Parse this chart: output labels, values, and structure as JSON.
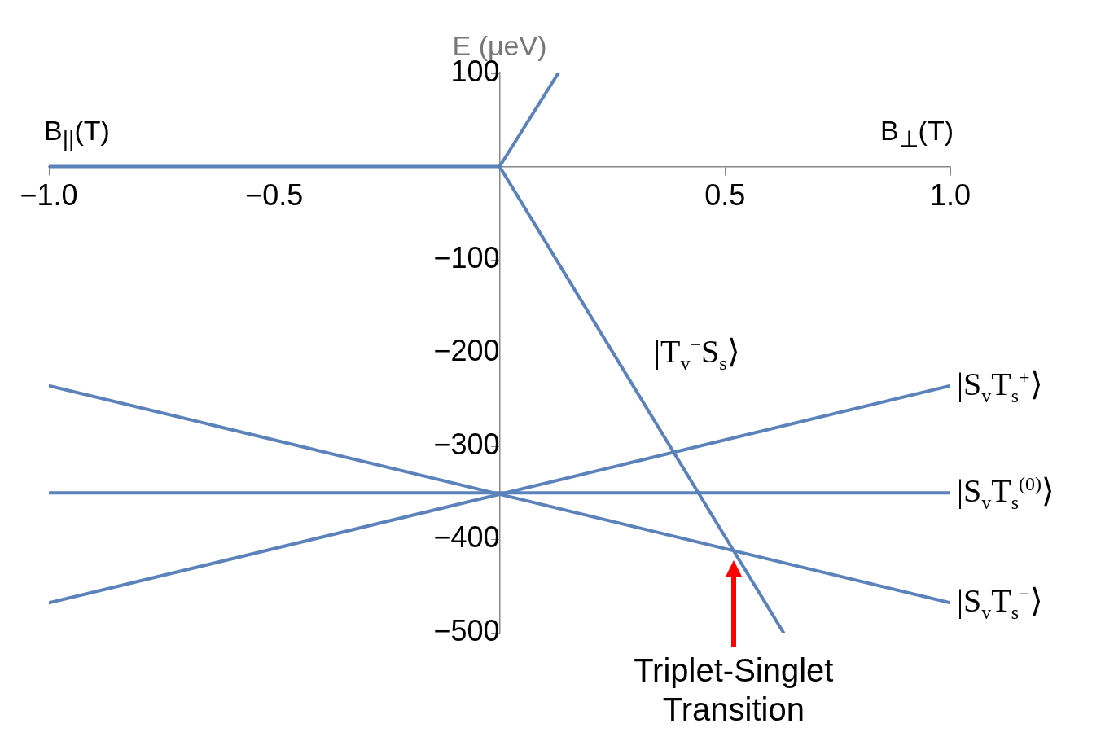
{
  "chart_data": {
    "type": "line",
    "ylabel": "E (μeV)",
    "xlabel": "B$_{⊥}$(T)",
    "xlim": [
      -1,
      1
    ],
    "ylim": [
      -500,
      100
    ],
    "xticks": [
      {
        "value": -1,
        "label": "−1.0"
      },
      {
        "value": -0.5,
        "label": "−0.5"
      },
      {
        "value": 0,
        "label": null
      },
      {
        "value": 0.5,
        "label": "0.5"
      },
      {
        "value": 1,
        "label": "1.0"
      }
    ],
    "yticks": [
      100,
      {
        "value": 0,
        "label": null
      },
      {
        "value": -100,
        "label": "−100"
      },
      {
        "value": -200,
        "label": "−200"
      },
      {
        "value": -300,
        "label": "−300"
      },
      {
        "value": -400,
        "label": "−400"
      },
      {
        "value": -500,
        "label": "−500"
      }
    ],
    "series": [
      {
        "color": "#5b82ba",
        "x": [
          -1,
          0
        ],
        "values": [
          0,
          0
        ]
      },
      {
        "color": "#5b82ba",
        "x": [
          0,
          0.13
        ],
        "values": [
          0,
          100
        ]
      },
      {
        "name": "|T$_{v}$$^{−}$S$_{s}$⟩",
        "color": "#5b82ba",
        "x": [
          0,
          0.63
        ],
        "values": [
          0,
          -500
        ]
      },
      {
        "name": "|S$_{v}$T$_{s}$$^{+}$⟩",
        "color": "#5b82ba",
        "x": [
          -1,
          1
        ],
        "values": [
          -468,
          -235
        ]
      },
      {
        "name": "|S$_{v}$T$_{s}$$^{(0)}$⟩",
        "color": "#5b82ba",
        "x": [
          -1,
          1
        ],
        "values": [
          -350,
          -350
        ]
      },
      {
        "name": "|S$_{v}$T$_{s}$$^{−}$⟩",
        "color": "#5b82ba",
        "x": [
          -1,
          1
        ],
        "values": [
          -235,
          -468
        ]
      }
    ],
    "annotations": [
      "B$_{||}$(T)",
      "Triplet-Singlet Transition"
    ]
  }
}
